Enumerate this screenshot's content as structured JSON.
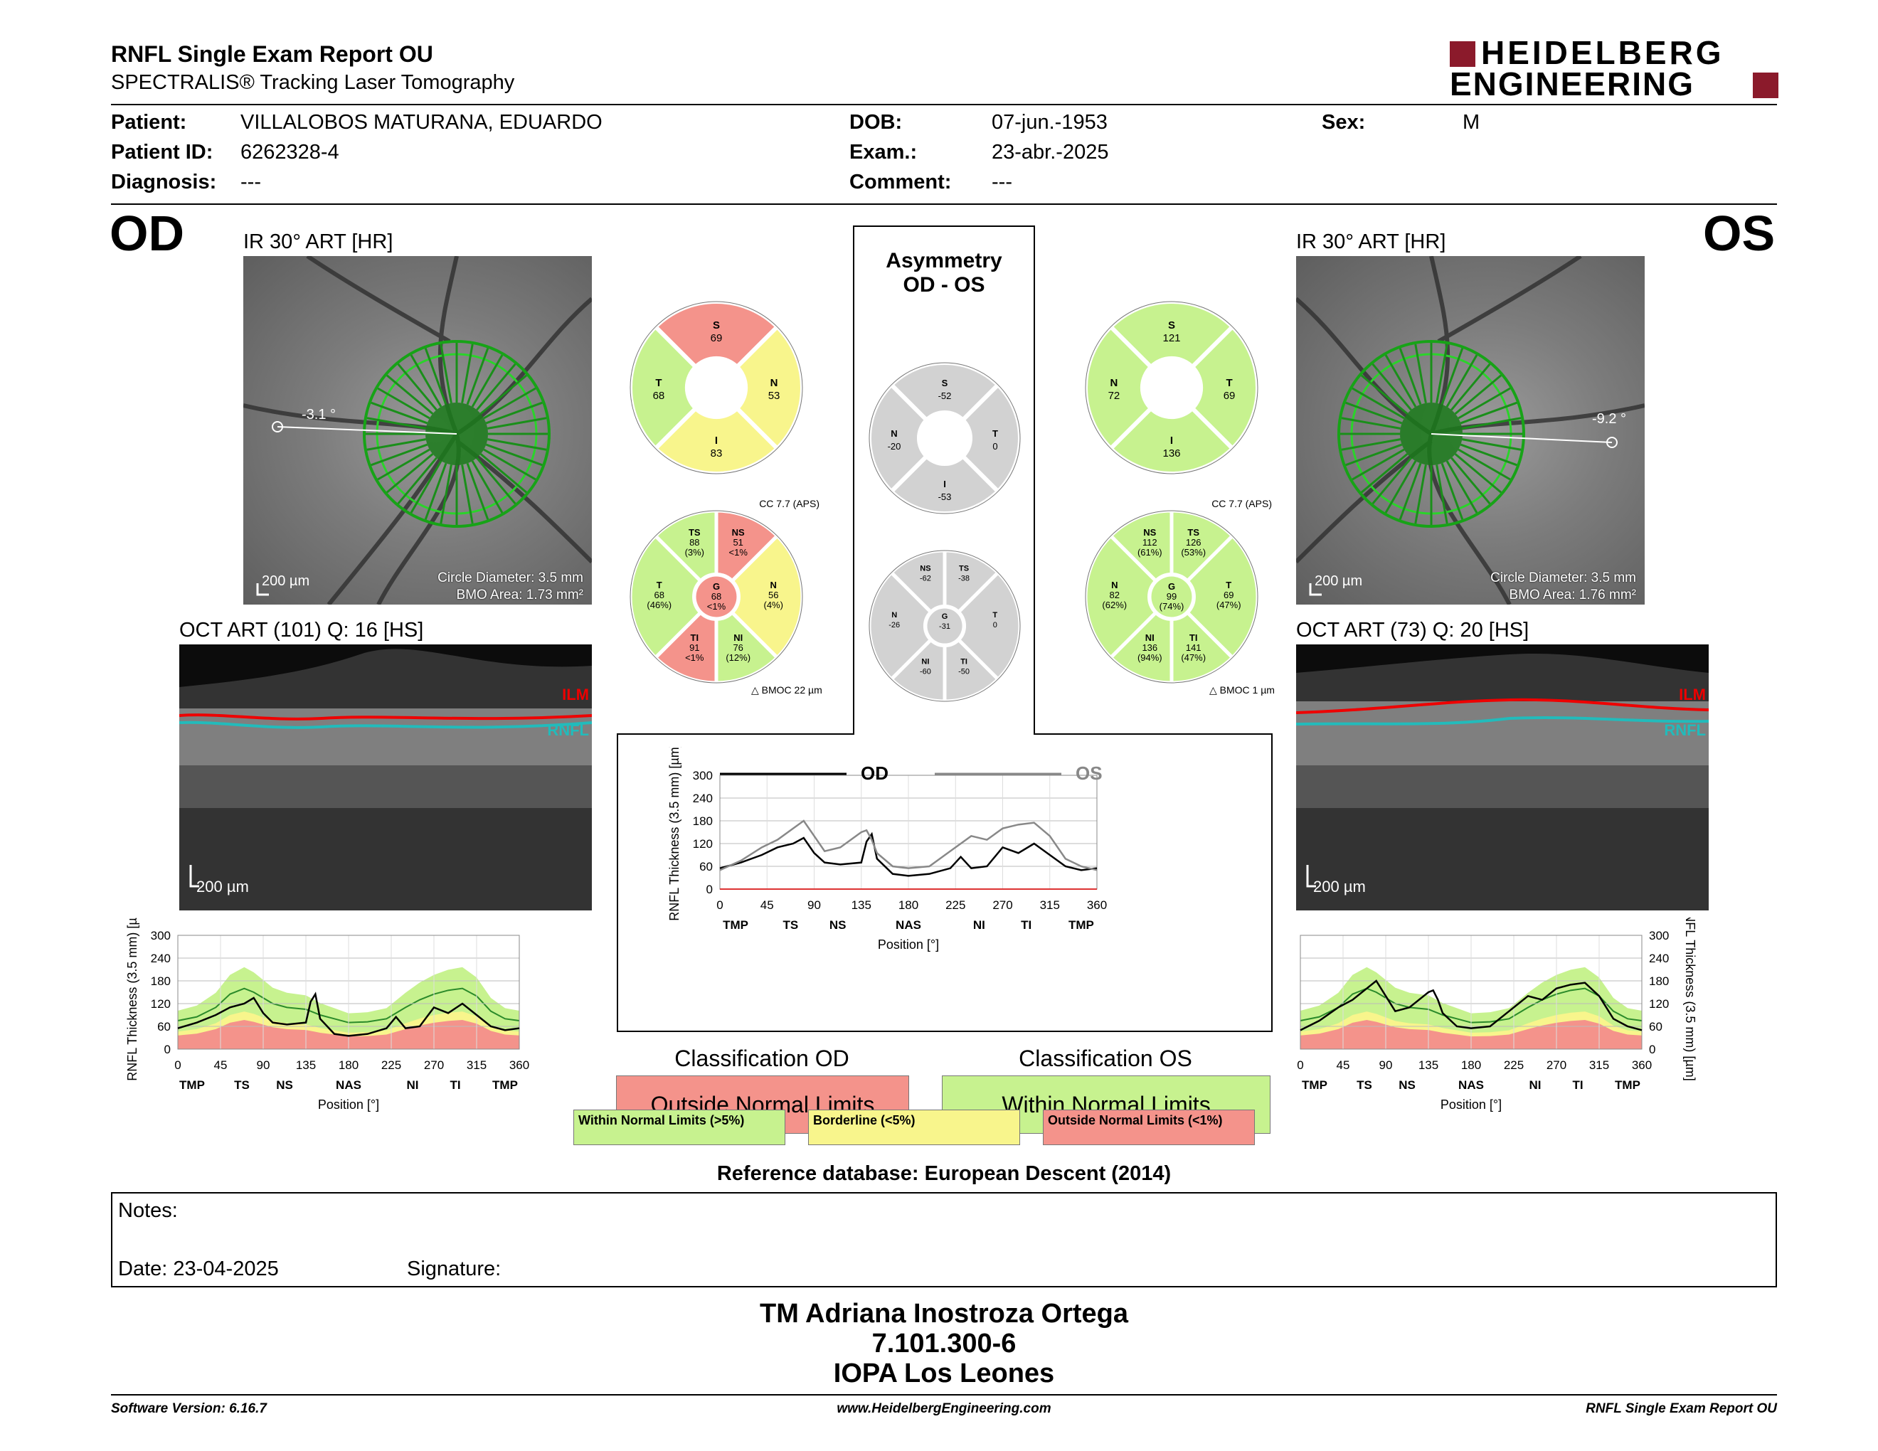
{
  "header": {
    "title": "RNFL Single Exam Report OU",
    "subtitle": "SPECTRALIS® Tracking Laser Tomography",
    "logo_line1": "HEIDELBERG",
    "logo_line2": "ENGINEERING",
    "logo_color": "#8b1a2b"
  },
  "patient": {
    "patient_label": "Patient:",
    "patient_value": "VILLALOBOS MATURANA, EDUARDO",
    "id_label": "Patient ID:",
    "id_value": "6262328-4",
    "diag_label": "Diagnosis:",
    "diag_value": "---",
    "dob_label": "DOB:",
    "dob_value": "07-jun.-1953",
    "exam_label": "Exam.:",
    "exam_value": "23-abr.-2025",
    "comment_label": "Comment:",
    "comment_value": "---",
    "sex_label": "Sex:",
    "sex_value": "M"
  },
  "od": {
    "eye": "OD",
    "ir_title": "IR 30° ART [HR]",
    "angle": "-3.1 °",
    "scale": "200 µm",
    "circle_diameter": "Circle Diameter: 3.5 mm",
    "bmo_area": "BMO Area: 1.73 mm²",
    "oct_title": "OCT ART (101) Q: 16 [HS]",
    "oct_scale": "200 µm",
    "ilm": "ILM",
    "rnfl": "RNFL",
    "cc": "CC 7.7 (APS)",
    "bmoc": "BMOC 22 µm",
    "sectors4": {
      "S": "69",
      "T": "68",
      "N": "53",
      "I": "83"
    },
    "sectors6": {
      "TS": "88",
      "TS_p": "(3%)",
      "NS": "51",
      "NS_p": "<1%",
      "T": "68",
      "T_p": "(46%)",
      "G": "68",
      "G_p": "<1%",
      "N": "56",
      "N_p": "(4%)",
      "TI": "91",
      "TI_p": "<1%",
      "NI": "76",
      "NI_p": "(12%)"
    },
    "classification_title": "Classification OD",
    "classification": "Outside Normal Limits"
  },
  "os": {
    "eye": "OS",
    "ir_title": "IR 30° ART [HR]",
    "angle": "-9.2 °",
    "scale": "200 µm",
    "circle_diameter": "Circle Diameter: 3.5 mm",
    "bmo_area": "BMO Area: 1.76 mm²",
    "oct_title": "OCT ART (73) Q: 20 [HS]",
    "oct_scale": "200 µm",
    "ilm": "ILM",
    "rnfl": "RNFL",
    "cc": "CC 7.7 (APS)",
    "bmoc": "BMOC 1 µm",
    "sectors4": {
      "S": "121",
      "N": "72",
      "T": "69",
      "I": "136"
    },
    "sectors6": {
      "NS": "112",
      "NS_p": "(61%)",
      "TS": "126",
      "TS_p": "(53%)",
      "N": "82",
      "N_p": "(62%)",
      "G": "99",
      "G_p": "(74%)",
      "T": "69",
      "T_p": "(47%)",
      "NI": "136",
      "NI_p": "(94%)",
      "TI": "141",
      "TI_p": "(47%)"
    },
    "classification_title": "Classification OS",
    "classification": "Within Normal Limits"
  },
  "asym": {
    "title1": "Asymmetry",
    "title2": "OD - OS",
    "sectors4": {
      "S": "-52",
      "N": "-20",
      "T": "0",
      "I": "-53"
    },
    "sectors6": {
      "NS": "-62",
      "TS": "-38",
      "N": "-26",
      "G": "-31",
      "T": "0",
      "NI": "-60",
      "TI": "-50"
    }
  },
  "sector_labels": {
    "S": "S",
    "T": "T",
    "N": "N",
    "I": "I",
    "TS": "TS",
    "NS": "NS",
    "G": "G",
    "TI": "TI",
    "NI": "NI"
  },
  "colors": {
    "red": "#f4938b",
    "yellow": "#f8f58c",
    "green": "#c7f28f",
    "gray": "#d2d2d2",
    "darkred": "#d33"
  },
  "chart_data": [
    {
      "type": "line",
      "name": "od-profile",
      "ylabel": "RNFL Thickness (3.5 mm) [µm]",
      "xlabel": "Position [°]",
      "xlim": [
        0,
        360
      ],
      "ylim": [
        0,
        300
      ],
      "xticks": [
        "0",
        "45",
        "90",
        "135",
        "180",
        "225",
        "270",
        "315",
        "360"
      ],
      "yticks": [
        "0",
        "60",
        "120",
        "180",
        "240",
        "300"
      ],
      "sector_ticks": [
        "TMP",
        "TS",
        "NS",
        "NAS",
        "NI",
        "TI",
        "TMP"
      ],
      "x": [
        0,
        20,
        40,
        55,
        70,
        80,
        90,
        100,
        115,
        135,
        140,
        145,
        150,
        165,
        180,
        200,
        220,
        230,
        240,
        255,
        270,
        285,
        300,
        315,
        330,
        345,
        360
      ],
      "series": [
        {
          "values": [
            55,
            70,
            90,
            110,
            120,
            135,
            95,
            70,
            65,
            70,
            125,
            145,
            80,
            40,
            35,
            40,
            55,
            85,
            55,
            60,
            110,
            95,
            120,
            90,
            60,
            50,
            55
          ]
        }
      ],
      "normal_mean": [
        75,
        85,
        110,
        145,
        160,
        150,
        135,
        120,
        110,
        105,
        100,
        95,
        90,
        80,
        70,
        72,
        80,
        95,
        110,
        130,
        145,
        155,
        160,
        140,
        100,
        80,
        75
      ]
    },
    {
      "type": "line",
      "name": "comparison",
      "ylabel": "RNFL Thickness (3.5 mm) [µm]",
      "xlabel": "Position [°]",
      "xlim": [
        0,
        360
      ],
      "ylim": [
        0,
        300
      ],
      "xticks": [
        "0",
        "45",
        "90",
        "135",
        "180",
        "225",
        "270",
        "315",
        "360"
      ],
      "yticks": [
        "0",
        "60",
        "120",
        "180",
        "240",
        "300"
      ],
      "sector_ticks": [
        "TMP",
        "TS",
        "NS",
        "NAS",
        "NI",
        "TI",
        "TMP"
      ],
      "x": [
        0,
        20,
        40,
        55,
        70,
        80,
        90,
        100,
        115,
        135,
        140,
        145,
        150,
        165,
        180,
        200,
        220,
        230,
        240,
        255,
        270,
        285,
        300,
        315,
        330,
        345,
        360
      ],
      "series": [
        {
          "name": "OD",
          "values": [
            55,
            70,
            90,
            110,
            120,
            135,
            95,
            70,
            65,
            70,
            125,
            145,
            80,
            40,
            35,
            40,
            55,
            85,
            55,
            60,
            110,
            95,
            120,
            90,
            60,
            50,
            55
          ]
        },
        {
          "name": "OS",
          "values": [
            50,
            75,
            110,
            130,
            160,
            180,
            140,
            100,
            110,
            150,
            155,
            130,
            95,
            60,
            55,
            60,
            100,
            120,
            140,
            130,
            160,
            170,
            175,
            140,
            80,
            60,
            50
          ]
        }
      ]
    },
    {
      "type": "line",
      "name": "os-profile",
      "ylabel": "RNFL Thickness (3.5 mm) [µm]",
      "xlabel": "Position [°]",
      "xlim": [
        0,
        360
      ],
      "ylim": [
        0,
        300
      ],
      "xticks": [
        "0",
        "45",
        "90",
        "135",
        "180",
        "225",
        "270",
        "315",
        "360"
      ],
      "yticks": [
        "0",
        "60",
        "120",
        "180",
        "240",
        "300"
      ],
      "sector_ticks": [
        "TMP",
        "TS",
        "NS",
        "NAS",
        "NI",
        "TI",
        "TMP"
      ],
      "x": [
        0,
        20,
        40,
        55,
        70,
        80,
        90,
        100,
        115,
        135,
        140,
        145,
        150,
        165,
        180,
        200,
        220,
        230,
        240,
        255,
        270,
        285,
        300,
        315,
        330,
        345,
        360
      ],
      "series": [
        {
          "values": [
            50,
            75,
            110,
            130,
            160,
            180,
            140,
            100,
            110,
            150,
            155,
            130,
            95,
            60,
            55,
            60,
            100,
            120,
            140,
            130,
            160,
            170,
            175,
            140,
            80,
            60,
            50
          ]
        }
      ],
      "normal_mean": [
        75,
        85,
        110,
        145,
        160,
        150,
        135,
        120,
        110,
        105,
        100,
        95,
        90,
        80,
        70,
        72,
        80,
        95,
        110,
        130,
        145,
        155,
        160,
        140,
        100,
        80,
        75
      ]
    }
  ],
  "legend": {
    "within": "Within Normal Limits (>5%)",
    "borderline": "Borderline (<5%)",
    "outside": "Outside Normal Limits (<1%)"
  },
  "reference": "Reference database: European Descent (2014)",
  "notes": {
    "notes_label": "Notes:",
    "date_label": "Date: 23-04-2025",
    "signature_label": "Signature:"
  },
  "signer": {
    "name": "TM Adriana Inostroza Ortega",
    "id": "7.101.300-6",
    "place": "IOPA Los Leones"
  },
  "footer": {
    "software": "Software Version: 6.16.7",
    "url": "www.HeidelbergEngineering.com",
    "report": "RNFL Single Exam Report OU"
  }
}
